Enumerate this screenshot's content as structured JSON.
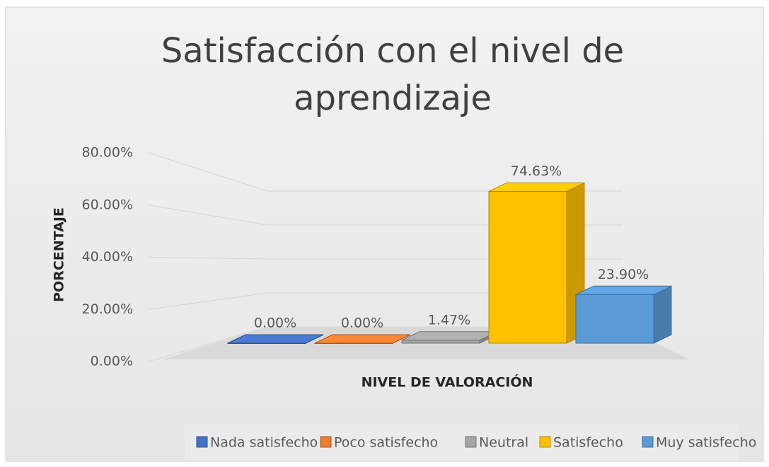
{
  "chart_data": {
    "type": "bar3d",
    "title": "Satisfacción con el nivel de aprendizaje",
    "x_label": "NIVEL DE VALORACIÓN",
    "y_label": "PORCENTAJE",
    "series": [
      {
        "name": "Nada satisfecho",
        "color": "#4472c4",
        "values": [
          0
        ],
        "value_labels": [
          "0.00%"
        ]
      },
      {
        "name": "Poco satisfecho",
        "color": "#ed7d31",
        "values": [
          0
        ],
        "value_labels": [
          "0.00%"
        ]
      },
      {
        "name": "Neutral",
        "color": "#a5a5a5",
        "values": [
          1.47
        ],
        "value_labels": [
          "1.47%"
        ]
      },
      {
        "name": "Satisfecho",
        "color": "#ffc000",
        "values": [
          74.63
        ],
        "value_labels": [
          "74.63%"
        ]
      },
      {
        "name": "Muy satisfecho",
        "color": "#5b9bd5",
        "values": [
          23.9
        ],
        "value_labels": [
          "23.90%"
        ]
      }
    ],
    "ylim": [
      0,
      80
    ],
    "yticks": [
      {
        "value": 0,
        "label": "0.00%"
      },
      {
        "value": 20,
        "label": "20.00%"
      },
      {
        "value": 40,
        "label": "40.00%"
      },
      {
        "value": 60,
        "label": "60.00%"
      },
      {
        "value": 80,
        "label": "80.00%"
      }
    ],
    "grid": true,
    "legend": "bottom"
  }
}
